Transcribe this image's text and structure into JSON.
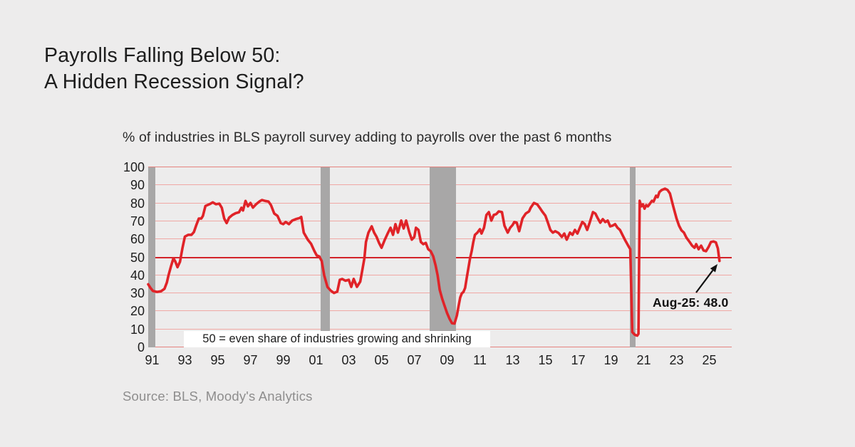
{
  "title": {
    "line1": "Payrolls Falling Below 50:",
    "line2": "A Hidden Recession Signal?"
  },
  "subtitle": "% of industries in BLS payroll survey adding to payrolls over the past 6 months",
  "note_box": "50 = even share of industries growing and shrinking",
  "annotation": {
    "label": "Aug-25: 48.0"
  },
  "source": "Source: BLS, Moody's Analytics",
  "colors": {
    "background": "#edecec",
    "line_red": "#e02328",
    "grid_pink": "#f0a8a4",
    "grid_strong_red": "#d2232a",
    "grid_medium_red": "#e5827e",
    "recession_gray": "#a8a7a7",
    "text_dark": "#1d1d1d",
    "source_gray": "#8e8d8d",
    "note_background": "#ffffff",
    "annotation_black": "#111111"
  },
  "chart_data": {
    "type": "line",
    "title": "% of industries in BLS payroll survey adding to payrolls over the past 6 months",
    "xlabel": "",
    "ylabel": "",
    "ylim": [
      0,
      100
    ],
    "y_ticks": [
      0,
      10,
      20,
      30,
      40,
      50,
      60,
      70,
      80,
      90,
      100
    ],
    "x_tick_labels": [
      "91",
      "93",
      "95",
      "97",
      "99",
      "01",
      "03",
      "05",
      "07",
      "09",
      "11",
      "13",
      "15",
      "17",
      "19",
      "21",
      "23",
      "25"
    ],
    "x_tick_years": [
      1991,
      1993,
      1995,
      1997,
      1999,
      2001,
      2003,
      2005,
      2007,
      2009,
      2011,
      2013,
      2015,
      2017,
      2019,
      2021,
      2023,
      2025
    ],
    "xlim_years": [
      1990.76,
      2026.37
    ],
    "grid": "horizontal-red",
    "reference_line": 50,
    "recession_bands_years": [
      [
        1990.76,
        1991.2
      ],
      [
        2001.3,
        2001.85
      ],
      [
        2007.95,
        2009.55
      ],
      [
        2020.15,
        2020.52
      ]
    ],
    "last_point": {
      "x": 2025.62,
      "y": 48.0,
      "label": "Aug-25: 48.0"
    },
    "series": [
      {
        "name": "% of industries adding to payrolls over past 6 months",
        "points": [
          [
            1990.76,
            35
          ],
          [
            1990.9,
            33
          ],
          [
            1991.05,
            31.3
          ],
          [
            1991.3,
            30.8
          ],
          [
            1991.55,
            31.2
          ],
          [
            1991.75,
            32.5
          ],
          [
            1991.9,
            36
          ],
          [
            1992.0,
            40
          ],
          [
            1992.15,
            45
          ],
          [
            1992.3,
            49.5
          ],
          [
            1992.42,
            47.5
          ],
          [
            1992.55,
            44.5
          ],
          [
            1992.7,
            47.5
          ],
          [
            1992.85,
            55
          ],
          [
            1993.0,
            61.5
          ],
          [
            1993.2,
            62.5
          ],
          [
            1993.4,
            62.5
          ],
          [
            1993.55,
            64
          ],
          [
            1993.7,
            68
          ],
          [
            1993.85,
            71.5
          ],
          [
            1994.0,
            71.5
          ],
          [
            1994.1,
            73
          ],
          [
            1994.25,
            78.5
          ],
          [
            1994.5,
            79.5
          ],
          [
            1994.7,
            80.5
          ],
          [
            1994.9,
            79.5
          ],
          [
            1995.1,
            79.8
          ],
          [
            1995.25,
            77.5
          ],
          [
            1995.4,
            71.5
          ],
          [
            1995.55,
            69
          ],
          [
            1995.7,
            72
          ],
          [
            1995.9,
            73.5
          ],
          [
            1996.1,
            74.5
          ],
          [
            1996.3,
            75
          ],
          [
            1996.45,
            77.5
          ],
          [
            1996.55,
            76
          ],
          [
            1996.7,
            81.3
          ],
          [
            1996.85,
            78.3
          ],
          [
            1997.0,
            80.2
          ],
          [
            1997.15,
            77.6
          ],
          [
            1997.35,
            79.5
          ],
          [
            1997.55,
            81
          ],
          [
            1997.7,
            81.8
          ],
          [
            1997.9,
            81.3
          ],
          [
            1998.1,
            81
          ],
          [
            1998.25,
            79
          ],
          [
            1998.45,
            74.3
          ],
          [
            1998.65,
            73
          ],
          [
            1998.85,
            69
          ],
          [
            1999.0,
            68.4
          ],
          [
            1999.15,
            69.6
          ],
          [
            1999.35,
            68.4
          ],
          [
            1999.55,
            70.4
          ],
          [
            1999.8,
            71.3
          ],
          [
            2000.0,
            71.8
          ],
          [
            2000.1,
            72.4
          ],
          [
            2000.25,
            63.7
          ],
          [
            2000.5,
            59.8
          ],
          [
            2000.7,
            57.5
          ],
          [
            2000.9,
            53.5
          ],
          [
            2001.05,
            51
          ],
          [
            2001.2,
            50.5
          ],
          [
            2001.35,
            48
          ],
          [
            2001.5,
            40
          ],
          [
            2001.7,
            33.5
          ],
          [
            2001.9,
            31.5
          ],
          [
            2002.1,
            30.2
          ],
          [
            2002.3,
            31
          ],
          [
            2002.45,
            37.5
          ],
          [
            2002.6,
            38
          ],
          [
            2002.8,
            37
          ],
          [
            2003.0,
            37.5
          ],
          [
            2003.15,
            33.6
          ],
          [
            2003.3,
            38
          ],
          [
            2003.5,
            33.6
          ],
          [
            2003.7,
            36.5
          ],
          [
            2003.85,
            44
          ],
          [
            2003.95,
            49.4
          ],
          [
            2004.05,
            58.5
          ],
          [
            2004.2,
            63.7
          ],
          [
            2004.4,
            67.2
          ],
          [
            2004.55,
            63.7
          ],
          [
            2004.7,
            61.3
          ],
          [
            2004.85,
            58
          ],
          [
            2005.0,
            55.3
          ],
          [
            2005.2,
            59.8
          ],
          [
            2005.4,
            63.7
          ],
          [
            2005.55,
            66.4
          ],
          [
            2005.7,
            62.5
          ],
          [
            2005.85,
            68.4
          ],
          [
            2006.0,
            63.7
          ],
          [
            2006.2,
            70.4
          ],
          [
            2006.35,
            66
          ],
          [
            2006.5,
            70.4
          ],
          [
            2006.7,
            63.7
          ],
          [
            2006.85,
            59.8
          ],
          [
            2007.0,
            61.3
          ],
          [
            2007.1,
            66.4
          ],
          [
            2007.25,
            65.2
          ],
          [
            2007.4,
            58.5
          ],
          [
            2007.55,
            57.3
          ],
          [
            2007.7,
            58
          ],
          [
            2007.85,
            54.5
          ],
          [
            2008.0,
            53.4
          ],
          [
            2008.15,
            50.6
          ],
          [
            2008.3,
            45.4
          ],
          [
            2008.42,
            40
          ],
          [
            2008.55,
            32
          ],
          [
            2008.7,
            27
          ],
          [
            2008.85,
            23
          ],
          [
            2009.0,
            19
          ],
          [
            2009.15,
            15.8
          ],
          [
            2009.3,
            13.4
          ],
          [
            2009.45,
            13.2
          ],
          [
            2009.6,
            17.8
          ],
          [
            2009.7,
            22.9
          ],
          [
            2009.8,
            27.7
          ],
          [
            2009.9,
            30
          ],
          [
            2010.0,
            30.8
          ],
          [
            2010.1,
            33
          ],
          [
            2010.2,
            38.7
          ],
          [
            2010.3,
            44
          ],
          [
            2010.4,
            49.4
          ],
          [
            2010.5,
            53.4
          ],
          [
            2010.6,
            58.5
          ],
          [
            2010.7,
            62.5
          ],
          [
            2010.85,
            63.7
          ],
          [
            2011.0,
            65.6
          ],
          [
            2011.1,
            63.2
          ],
          [
            2011.25,
            66.4
          ],
          [
            2011.4,
            73.5
          ],
          [
            2011.55,
            75.1
          ],
          [
            2011.7,
            70.4
          ],
          [
            2011.85,
            73.5
          ],
          [
            2012.0,
            74
          ],
          [
            2012.15,
            75.5
          ],
          [
            2012.35,
            75.1
          ],
          [
            2012.5,
            67.6
          ],
          [
            2012.7,
            63.7
          ],
          [
            2012.85,
            66.4
          ],
          [
            2013.0,
            68
          ],
          [
            2013.1,
            69.6
          ],
          [
            2013.25,
            69.2
          ],
          [
            2013.4,
            64.5
          ],
          [
            2013.6,
            71.6
          ],
          [
            2013.8,
            74.3
          ],
          [
            2014.0,
            75.5
          ],
          [
            2014.1,
            77.5
          ],
          [
            2014.3,
            80.2
          ],
          [
            2014.5,
            79.4
          ],
          [
            2014.65,
            77.5
          ],
          [
            2014.8,
            75.5
          ],
          [
            2015.0,
            73.1
          ],
          [
            2015.15,
            69.2
          ],
          [
            2015.3,
            65.2
          ],
          [
            2015.45,
            63.7
          ],
          [
            2015.6,
            64.5
          ],
          [
            2015.8,
            63.5
          ],
          [
            2016.0,
            61.3
          ],
          [
            2016.15,
            63.2
          ],
          [
            2016.3,
            59.8
          ],
          [
            2016.5,
            63.7
          ],
          [
            2016.65,
            62.5
          ],
          [
            2016.8,
            65.2
          ],
          [
            2016.95,
            63.2
          ],
          [
            2017.1,
            66.4
          ],
          [
            2017.25,
            69.6
          ],
          [
            2017.4,
            68.4
          ],
          [
            2017.55,
            65.2
          ],
          [
            2017.7,
            69.2
          ],
          [
            2017.9,
            75.1
          ],
          [
            2018.05,
            74.3
          ],
          [
            2018.2,
            71.6
          ],
          [
            2018.35,
            69.2
          ],
          [
            2018.5,
            71.2
          ],
          [
            2018.65,
            69.6
          ],
          [
            2018.8,
            70.4
          ],
          [
            2018.95,
            67.2
          ],
          [
            2019.1,
            67.6
          ],
          [
            2019.25,
            68.4
          ],
          [
            2019.4,
            66.4
          ],
          [
            2019.55,
            65.2
          ],
          [
            2019.7,
            62.5
          ],
          [
            2019.85,
            59.8
          ],
          [
            2020.0,
            57.3
          ],
          [
            2020.1,
            55.7
          ],
          [
            2020.18,
            54.5
          ],
          [
            2020.3,
            8.5
          ],
          [
            2020.45,
            7
          ],
          [
            2020.6,
            6.5
          ],
          [
            2020.68,
            7.5
          ],
          [
            2020.75,
            81.4
          ],
          [
            2020.85,
            78.3
          ],
          [
            2020.95,
            79.4
          ],
          [
            2021.05,
            77
          ],
          [
            2021.15,
            79
          ],
          [
            2021.25,
            78.3
          ],
          [
            2021.35,
            79.4
          ],
          [
            2021.5,
            81.4
          ],
          [
            2021.6,
            81
          ],
          [
            2021.75,
            84.2
          ],
          [
            2021.85,
            83.4
          ],
          [
            2021.95,
            86.2
          ],
          [
            2022.1,
            87.4
          ],
          [
            2022.3,
            88.1
          ],
          [
            2022.45,
            87.4
          ],
          [
            2022.6,
            85.4
          ],
          [
            2022.8,
            78.3
          ],
          [
            2023.0,
            71.6
          ],
          [
            2023.15,
            67.6
          ],
          [
            2023.3,
            65
          ],
          [
            2023.45,
            63.7
          ],
          [
            2023.6,
            61
          ],
          [
            2023.8,
            58.5
          ],
          [
            2023.95,
            56.5
          ],
          [
            2024.1,
            55.3
          ],
          [
            2024.2,
            57.3
          ],
          [
            2024.35,
            54.5
          ],
          [
            2024.5,
            56.5
          ],
          [
            2024.65,
            53.8
          ],
          [
            2024.8,
            53.4
          ],
          [
            2024.95,
            55.7
          ],
          [
            2025.1,
            58.5
          ],
          [
            2025.25,
            58.8
          ],
          [
            2025.4,
            58.3
          ],
          [
            2025.52,
            55
          ],
          [
            2025.62,
            48.0
          ]
        ]
      }
    ]
  }
}
